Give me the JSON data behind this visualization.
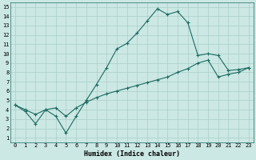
{
  "title": "",
  "xlabel": "Humidex (Indice chaleur)",
  "ylabel": "",
  "bg_color": "#cce8e4",
  "line_color": "#1a6b60",
  "grid_color": "#aacec8",
  "xlim": [
    -0.5,
    23.5
  ],
  "ylim": [
    0.5,
    15.5
  ],
  "xticks": [
    0,
    1,
    2,
    3,
    4,
    5,
    6,
    7,
    8,
    9,
    10,
    11,
    12,
    13,
    14,
    15,
    16,
    17,
    18,
    19,
    20,
    21,
    22,
    23
  ],
  "yticks": [
    1,
    2,
    3,
    4,
    5,
    6,
    7,
    8,
    9,
    10,
    11,
    12,
    13,
    14,
    15
  ],
  "line1_x": [
    0,
    1,
    2,
    3,
    4,
    5,
    6,
    7,
    8,
    9,
    10,
    11,
    12,
    13,
    14,
    15,
    16,
    17,
    18,
    19,
    20,
    21,
    22,
    23
  ],
  "line1_y": [
    4.5,
    3.8,
    2.5,
    4.0,
    3.3,
    1.5,
    3.3,
    5.0,
    6.7,
    8.5,
    10.5,
    11.1,
    12.2,
    13.5,
    14.8,
    14.2,
    14.5,
    13.3,
    9.8,
    10.0,
    9.8,
    8.2,
    8.3,
    8.5
  ],
  "line2_x": [
    0,
    1,
    2,
    3,
    4,
    5,
    6,
    7,
    8,
    9,
    10,
    11,
    12,
    13,
    14,
    15,
    16,
    17,
    18,
    19,
    20,
    21,
    22,
    23
  ],
  "line2_y": [
    4.5,
    4.0,
    3.5,
    4.0,
    4.2,
    3.3,
    4.2,
    4.8,
    5.3,
    5.7,
    6.0,
    6.3,
    6.6,
    6.9,
    7.2,
    7.5,
    8.0,
    8.4,
    9.0,
    9.3,
    7.5,
    7.8,
    8.0,
    8.5
  ],
  "figsize": [
    3.2,
    2.0
  ],
  "dpi": 100,
  "fontsize_ticks": 5,
  "fontsize_xlabel": 6,
  "marker": "+",
  "markersize": 3.5,
  "linewidth": 0.8
}
